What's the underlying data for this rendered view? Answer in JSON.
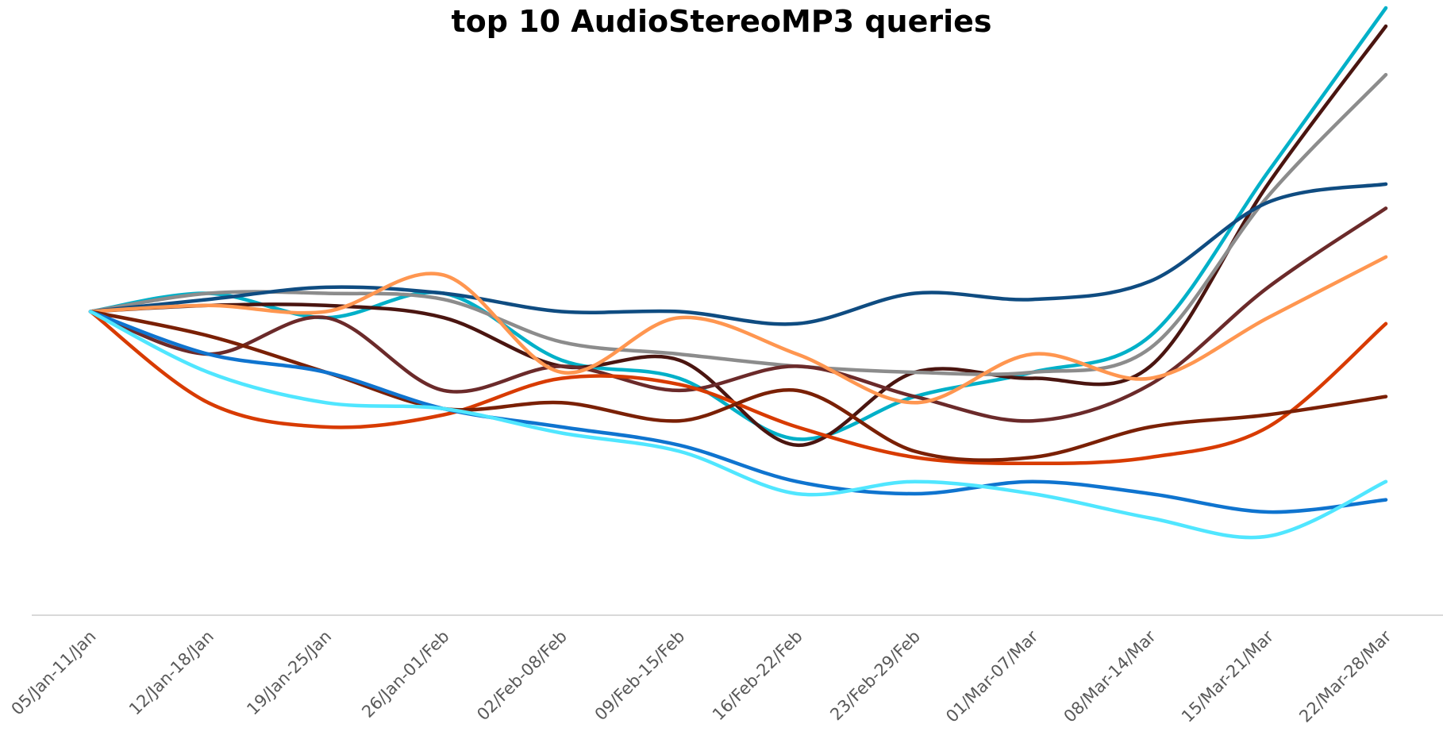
{
  "chart_data": {
    "type": "line",
    "title": "top 10 AudioStereoMP3 queries",
    "xlabel": "",
    "ylabel": "",
    "y_axis_visible": false,
    "grid": false,
    "legend": "none",
    "ylim": [
      0,
      100
    ],
    "categories": [
      "05/Jan-11/Jan",
      "12/Jan-18/Jan",
      "19/Jan-25/Jan",
      "26/Jan-01/Feb",
      "02/Feb-08/Feb",
      "09/Feb-15/Feb",
      "16/Feb-22/Feb",
      "23/Feb-29/Feb",
      "01/Mar-07/Mar",
      "08/Mar-14/Mar",
      "15/Mar-21/Mar",
      "22/Mar-28/Mar"
    ],
    "series": [
      {
        "color": "#00B0C8",
        "values": [
          50,
          53,
          49,
          53,
          42,
          39,
          29,
          36,
          40,
          46,
          73,
          100
        ]
      },
      {
        "color": "#4A1510",
        "values": [
          50,
          51,
          51,
          49,
          41,
          42,
          28,
          40,
          39,
          41,
          71,
          97
        ]
      },
      {
        "color": "#8C8C8C",
        "values": [
          50,
          53,
          53,
          52,
          45,
          43,
          41,
          40,
          40,
          44,
          69,
          89
        ]
      },
      {
        "color": "#0F4C81",
        "values": [
          50,
          52,
          54,
          53,
          50,
          50,
          48,
          53,
          52,
          55,
          68,
          71
        ]
      },
      {
        "color": "#6B2A2A",
        "values": [
          50,
          43,
          49,
          37,
          41,
          37,
          41,
          36,
          32,
          38,
          54,
          67
        ]
      },
      {
        "color": "#FF9650",
        "values": [
          50,
          51,
          50,
          56,
          40,
          49,
          43,
          35,
          43,
          39,
          49,
          59
        ]
      },
      {
        "color": "#D83B01",
        "values": [
          50,
          35,
          31,
          33,
          39,
          38,
          31,
          26,
          25,
          26,
          31,
          48
        ]
      },
      {
        "color": "#7A2005",
        "values": [
          50,
          46,
          40,
          34,
          35,
          32,
          37,
          27,
          26,
          31,
          33,
          36
        ]
      },
      {
        "color": "#0F74CF",
        "values": [
          50,
          43,
          40,
          34,
          31,
          28,
          22,
          20,
          22,
          20,
          17,
          19
        ]
      },
      {
        "color": "#50E6FF",
        "values": [
          50,
          40,
          35,
          34,
          30,
          27,
          20,
          22,
          20,
          16,
          13,
          22
        ]
      }
    ]
  }
}
